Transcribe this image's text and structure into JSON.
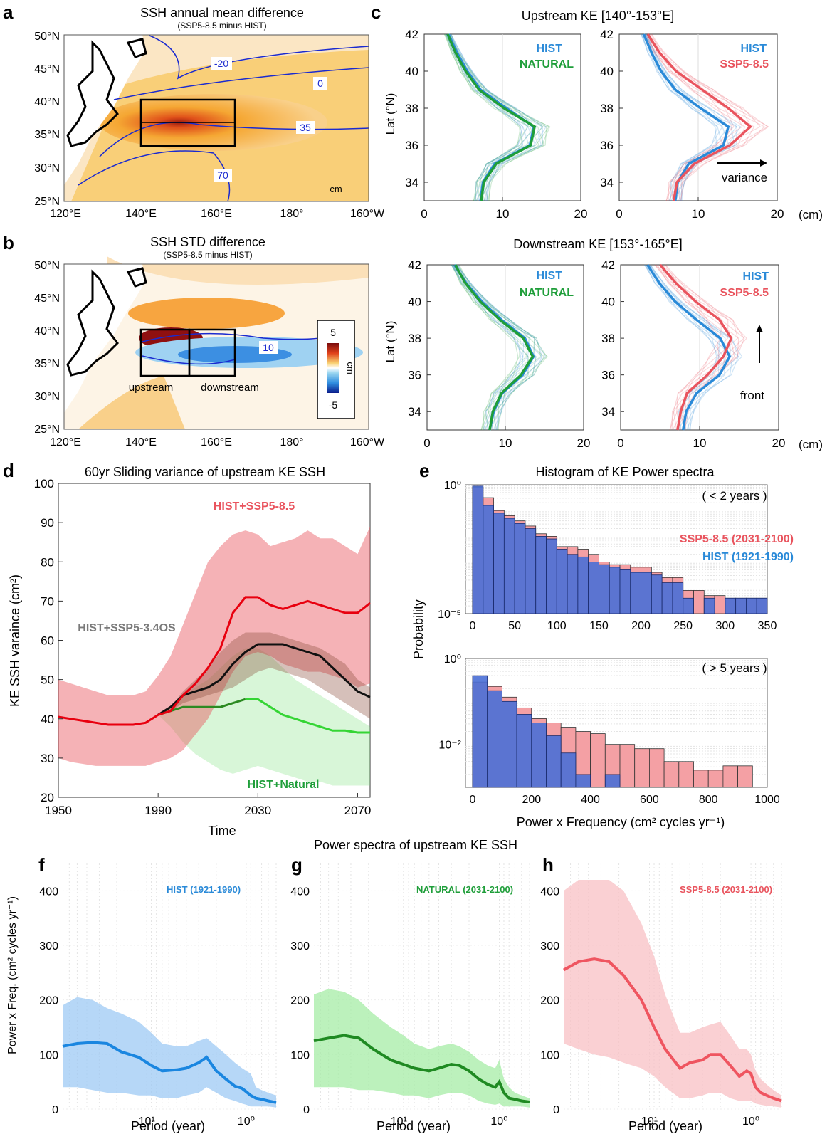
{
  "panel_letters": {
    "a": "a",
    "b": "b",
    "c": "c",
    "d": "d",
    "e": "e",
    "f": "f",
    "g": "g",
    "h": "h"
  },
  "unit_cm": "cm",
  "maps": {
    "lon_ticks": [
      "120°E",
      "140°E",
      "160°E",
      "180°",
      "160°W"
    ],
    "lat_ticks": [
      "25°N",
      "30°N",
      "35°N",
      "40°N",
      "45°N",
      "50°N"
    ],
    "a": {
      "title": "SSH annual mean difference",
      "subtitle": "(SSP5-8.5 minus HIST)",
      "contours": [
        "-20",
        "0",
        "35",
        "70"
      ],
      "unit": "cm"
    },
    "b": {
      "title": "SSH STD difference",
      "subtitle": "(SSP5-8.5 minus HIST)",
      "contours": [
        "10"
      ],
      "box_labels": [
        "upstream",
        "downstream"
      ],
      "colorbar": {
        "max": "5",
        "min": "-5",
        "unit": "cm"
      }
    }
  },
  "colors": {
    "hist": "#2a8ad8",
    "natural": "#1f9e3a",
    "ssp585": "#e9545e",
    "ssp34": "#7a7a7a",
    "black": "#111111"
  },
  "chart_data": [
    {
      "id": "c-upstream",
      "type": "line",
      "title": "Upstream KE [140°-153°E]",
      "ylabel": "Lat (°N)",
      "xlabel": "(cm)",
      "xlim": [
        0,
        20
      ],
      "ylim": [
        33,
        42
      ],
      "x_ticks": [
        "0",
        "10",
        "20"
      ],
      "y_ticks": [
        "34",
        "36",
        "38",
        "40",
        "42"
      ],
      "y": [
        33,
        34,
        35,
        36,
        37,
        38,
        39,
        40,
        41,
        42
      ],
      "left": {
        "series": [
          {
            "name": "HIST",
            "values": [
              7.2,
              7.5,
              9,
              13.5,
              14,
              10.5,
              7.2,
              5.5,
              4.2,
              3.1
            ]
          },
          {
            "name": "NATURAL",
            "values": [
              7.3,
              7.6,
              9.2,
              13.6,
              14.1,
              10.2,
              7,
              5.3,
              4.0,
              3.0
            ]
          }
        ]
      },
      "right": {
        "series": [
          {
            "name": "HIST",
            "values": [
              7.1,
              7.4,
              8.8,
              13.2,
              13.8,
              10.3,
              7.1,
              5.3,
              4.1,
              3.1
            ]
          },
          {
            "name": "SSP5-8.5",
            "values": [
              6.9,
              7.3,
              9.5,
              14,
              16.6,
              13.8,
              10.5,
              7.2,
              5.1,
              3.6
            ]
          }
        ]
      },
      "annotation": "variance"
    },
    {
      "id": "c-downstream",
      "type": "line",
      "title": "Downstream KE [153°-165°E]",
      "ylabel": "Lat (°N)",
      "xlabel": "(cm)",
      "xlim": [
        0,
        20
      ],
      "ylim": [
        33,
        42
      ],
      "x_ticks": [
        "0",
        "10",
        "20"
      ],
      "y_ticks": [
        "34",
        "36",
        "38",
        "40",
        "42"
      ],
      "y": [
        33,
        34,
        35,
        36,
        37,
        38,
        39,
        40,
        41,
        42
      ],
      "left": {
        "series": [
          {
            "name": "HIST",
            "values": [
              8.0,
              8.5,
              9.6,
              12.2,
              13.6,
              12.5,
              9.5,
              7.0,
              5.0,
              3.5
            ]
          },
          {
            "name": "NATURAL",
            "values": [
              8.0,
              8.4,
              9.5,
              12.0,
              13.5,
              12.3,
              9.3,
              6.8,
              4.9,
              3.6
            ]
          }
        ]
      },
      "right": {
        "series": [
          {
            "name": "HIST",
            "values": [
              7.9,
              8.3,
              9.6,
              12.5,
              13.8,
              12.6,
              9.6,
              6.9,
              4.9,
              3.4
            ]
          },
          {
            "name": "SSP5-8.5",
            "values": [
              7.2,
              7.6,
              8.4,
              11,
              13,
              14,
              12.5,
              9.5,
              7,
              5
            ]
          }
        ]
      },
      "annotation": "front"
    },
    {
      "id": "d",
      "type": "line",
      "title": "60yr Sliding variance of upstream KE SSH",
      "xlabel": "Time",
      "ylabel": "KE SSH varaince (cm²)",
      "xlim": [
        1950,
        2075
      ],
      "ylim": [
        20,
        100
      ],
      "x_ticks": [
        "1950",
        "1990",
        "2030",
        "2070"
      ],
      "y_ticks": [
        "20",
        "30",
        "40",
        "50",
        "60",
        "70",
        "80",
        "90",
        "100"
      ],
      "labels": [
        "HIST+SSP5-8.5",
        "HIST+SSP5-3.4OS",
        "HIST+Natural"
      ],
      "series": [
        {
          "name": "HIST+SSP5-8.5",
          "x": [
            1950,
            1955,
            1960,
            1965,
            1970,
            1975,
            1980,
            1985,
            1990,
            1995,
            2000,
            2005,
            2010,
            2015,
            2020,
            2025,
            2030,
            2035,
            2040,
            2045,
            2050,
            2055,
            2060,
            2065,
            2070,
            2075
          ],
          "values": [
            40.5,
            40,
            39.5,
            39,
            38.5,
            38.5,
            38.5,
            39,
            41,
            42,
            46,
            49,
            53,
            58,
            67,
            71,
            71,
            69,
            68,
            69,
            70,
            69,
            68,
            67,
            67,
            69.5
          ],
          "upper": [
            50,
            49,
            48,
            47,
            46,
            46,
            46,
            47,
            51,
            56,
            64,
            72,
            80,
            84,
            87,
            88,
            87,
            84,
            85,
            86,
            88,
            86,
            86,
            84,
            82,
            89
          ],
          "lower": [
            30,
            29,
            28.5,
            28,
            28,
            28,
            28,
            28,
            29,
            30,
            32,
            36,
            40,
            46,
            52,
            56,
            57,
            56,
            54,
            53,
            52,
            52,
            51,
            50,
            48,
            49
          ]
        },
        {
          "name": "HIST+SSP5-3.4OS",
          "x": [
            1990,
            1995,
            2000,
            2005,
            2010,
            2015,
            2020,
            2025,
            2030,
            2035,
            2040,
            2045,
            2050,
            2055,
            2060,
            2065,
            2070,
            2075
          ],
          "values": [
            41,
            43,
            46,
            47,
            48,
            50,
            54,
            57,
            59,
            59,
            59,
            58,
            57,
            56,
            53,
            50,
            47,
            45.5
          ],
          "upper": [
            41,
            43,
            47,
            50,
            53,
            57,
            60,
            62,
            62,
            62,
            61,
            60,
            59,
            58,
            56,
            54,
            50,
            48
          ],
          "lower": [
            41,
            42,
            44,
            45,
            46,
            47,
            48,
            50,
            52,
            53,
            52,
            51,
            50,
            48,
            46,
            44,
            42,
            40
          ]
        },
        {
          "name": "HIST+Natural",
          "x": [
            1990,
            1995,
            2000,
            2005,
            2010,
            2015,
            2020,
            2025,
            2030,
            2035,
            2040,
            2045,
            2050,
            2055,
            2060,
            2065,
            2070,
            2075
          ],
          "values": [
            41,
            42,
            43,
            43,
            43,
            43,
            44,
            45,
            45,
            43,
            41,
            40,
            39,
            38,
            37,
            37,
            36.5,
            36.5
          ],
          "upper": [
            41,
            43,
            46,
            48,
            50,
            53,
            56,
            58,
            58,
            56,
            53,
            50,
            48,
            46,
            44,
            42,
            40,
            38
          ],
          "lower": [
            41,
            38,
            34,
            31,
            29,
            27,
            26,
            27,
            28,
            27,
            26,
            25,
            24,
            24,
            23,
            23,
            23,
            23
          ]
        }
      ]
    },
    {
      "id": "e-top",
      "type": "bar",
      "title": "Histogram of KE Power spectra",
      "note": "( < 2 years )",
      "ylabel": "Probability",
      "scale": "log",
      "ylim_exp": [
        -5,
        0
      ],
      "y_ticks": [
        "10⁰",
        "10⁻⁵"
      ],
      "x_ticks": [
        "0",
        "50",
        "100",
        "150",
        "200",
        "250",
        "300",
        "350"
      ],
      "bin_width": 12.5,
      "series": [
        {
          "name": "SSP5-8.5 (2031-2100)",
          "bins_start": 0,
          "log10": [
            -0.1,
            -0.5,
            -1.0,
            -1.2,
            -1.4,
            -1.6,
            -1.9,
            -2.0,
            -2.4,
            -2.4,
            -2.5,
            -2.7,
            -3.0,
            -3.1,
            -3.1,
            -3.2,
            -3.2,
            -3.4,
            -3.6,
            -3.6,
            -4.1,
            -4.1,
            -4.3,
            -4.3,
            -4.4,
            -4.4,
            -4.4,
            -4.4
          ]
        },
        {
          "name": "HIST (1921-1990)",
          "bins_start": 0,
          "log10": [
            -0.05,
            -0.8,
            -1.1,
            -1.3,
            -1.5,
            -1.7,
            -2.0,
            -2.1,
            -2.5,
            -2.7,
            -2.8,
            -3.0,
            -3.1,
            -3.2,
            -3.3,
            -3.4,
            -3.4,
            -3.5,
            -3.8,
            -3.8,
            -4.4,
            -5.0,
            -4.4,
            -5.0,
            -4.4,
            -4.4,
            -4.4,
            -4.4
          ]
        }
      ]
    },
    {
      "id": "e-bottom",
      "type": "bar",
      "note": "( > 5 years )",
      "xlabel": "Power x Frequency (cm² cycles yr⁻¹)",
      "scale": "log",
      "ylim_exp": [
        -3,
        0
      ],
      "y_ticks": [
        "10⁰",
        "10⁻²"
      ],
      "x_ticks": [
        "0",
        "200",
        "400",
        "600",
        "800",
        "1000"
      ],
      "bin_width": 50,
      "series": [
        {
          "name": "SSP5-8.5 (2031-2100)",
          "log10": [
            -0.55,
            -0.65,
            -0.9,
            -1.15,
            -1.4,
            -1.5,
            -1.6,
            -1.7,
            -1.75,
            -2.0,
            -2.0,
            -2.1,
            -2.1,
            -2.4,
            -2.4,
            -2.6,
            -2.6,
            -2.5,
            -2.5
          ]
        },
        {
          "name": "HIST (1921-1990)",
          "log10": [
            -0.4,
            -0.75,
            -1.0,
            -1.3,
            -1.5,
            -1.8,
            -2.2,
            -2.7,
            -3.0,
            -2.7,
            -3.0,
            -3.0,
            -3.0,
            -3.0,
            -3.0,
            -3.0,
            -3.0,
            -3.0,
            -3.0
          ]
        }
      ]
    },
    {
      "id": "fgh",
      "type": "line",
      "title": "Power spectra of upstream KE SSH",
      "xlabel": "Period (year)",
      "ylabel": "Power x Freq. (cm² cycles yr⁻¹)",
      "scale_x": "log",
      "xlim": [
        70,
        0.5
      ],
      "ylim": [
        0,
        400
      ],
      "x_ticks": [
        "10¹",
        "10⁰"
      ],
      "y_ticks": [
        "0",
        "100",
        "200",
        "300",
        "400"
      ],
      "period": [
        70,
        50,
        35,
        25,
        18,
        12,
        9,
        7,
        5,
        4,
        3,
        2.5,
        2,
        1.6,
        1.3,
        1.1,
        1.0,
        0.9,
        0.8,
        0.7,
        0.6,
        0.5
      ],
      "panels": [
        {
          "name": "HIST (1921-1990)",
          "values": [
            115,
            120,
            122,
            120,
            105,
            95,
            80,
            70,
            72,
            75,
            85,
            95,
            70,
            55,
            42,
            38,
            32,
            25,
            20,
            18,
            15,
            12
          ],
          "upper": [
            190,
            205,
            200,
            185,
            175,
            160,
            140,
            120,
            115,
            115,
            125,
            130,
            115,
            100,
            85,
            75,
            70,
            65,
            40,
            35,
            30,
            25
          ],
          "lower": [
            40,
            40,
            35,
            30,
            30,
            25,
            25,
            20,
            20,
            25,
            30,
            40,
            30,
            20,
            15,
            10,
            8,
            5,
            5,
            5,
            5,
            3
          ]
        },
        {
          "name": "NATURAL (2031-2100)",
          "values": [
            125,
            130,
            135,
            130,
            110,
            90,
            82,
            75,
            70,
            75,
            82,
            80,
            70,
            55,
            45,
            40,
            50,
            30,
            20,
            18,
            15,
            13
          ],
          "upper": [
            210,
            220,
            215,
            200,
            175,
            150,
            135,
            120,
            110,
            115,
            120,
            115,
            105,
            90,
            80,
            75,
            90,
            55,
            40,
            30,
            25,
            20
          ],
          "lower": [
            40,
            40,
            40,
            35,
            35,
            30,
            25,
            25,
            20,
            25,
            30,
            30,
            25,
            15,
            10,
            8,
            10,
            5,
            5,
            5,
            5,
            3
          ]
        },
        {
          "name": "SSP5-8.5 (2031-2100)",
          "values": [
            255,
            270,
            275,
            270,
            245,
            200,
            150,
            110,
            75,
            85,
            90,
            100,
            100,
            80,
            60,
            70,
            65,
            40,
            30,
            25,
            20,
            15
          ],
          "upper": [
            400,
            420,
            420,
            420,
            400,
            340,
            280,
            210,
            140,
            140,
            150,
            155,
            160,
            135,
            110,
            110,
            100,
            70,
            55,
            45,
            35,
            25
          ],
          "lower": [
            120,
            110,
            100,
            95,
            85,
            75,
            60,
            40,
            20,
            20,
            25,
            30,
            30,
            20,
            15,
            15,
            15,
            10,
            8,
            6,
            5,
            3
          ]
        }
      ]
    }
  ]
}
